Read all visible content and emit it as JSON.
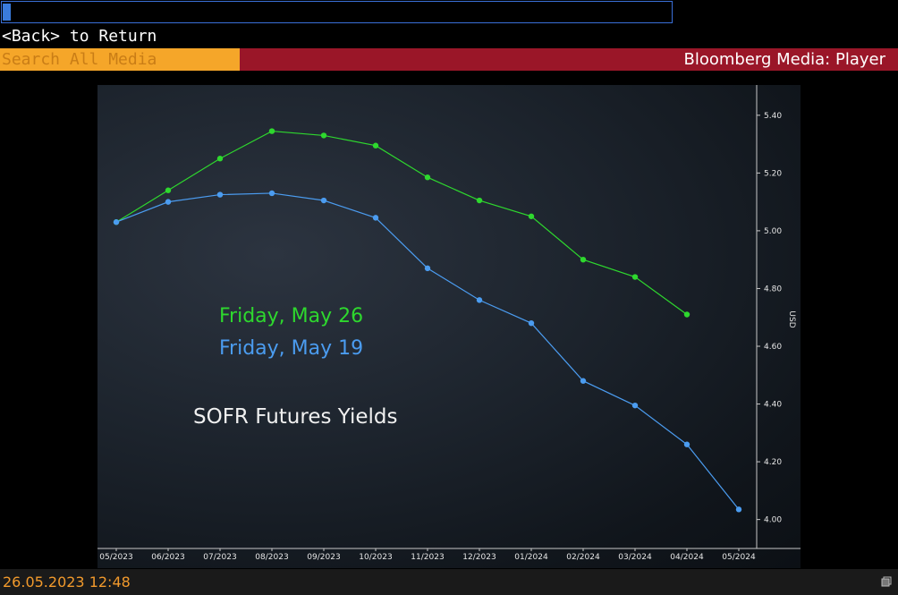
{
  "command_line": {
    "value": ""
  },
  "back_line": "<Back> to Return",
  "search": {
    "placeholder": "Search All Media"
  },
  "title_bar": {
    "label": "Bloomberg Media: Player"
  },
  "status_bar": {
    "timestamp": "26.05.2023 12:48"
  },
  "colors": {
    "search_bg": "#f5a629",
    "title_bg": "#9a1628",
    "series_may26": "#2ed82e",
    "series_may19": "#4b9cf0"
  },
  "chart_data": {
    "type": "line",
    "title": "SOFR Futures Yields",
    "ylabel": "USD",
    "xlabel": "",
    "x": [
      "05/2023",
      "06/2023",
      "07/2023",
      "08/2023",
      "09/2023",
      "10/2023",
      "11/2023",
      "12/2023",
      "01/2024",
      "02/2024",
      "03/2024",
      "04/2024",
      "05/2024"
    ],
    "yticks": [
      "4.00",
      "4.20",
      "4.40",
      "4.60",
      "4.80",
      "5.00",
      "5.20",
      "5.40"
    ],
    "ylim": [
      3.94,
      5.48
    ],
    "grid": false,
    "legend_position": "left-center",
    "series": [
      {
        "name": "Friday, May 26",
        "color": "#2ed82e",
        "values": [
          5.03,
          5.14,
          5.25,
          5.345,
          5.33,
          5.295,
          5.185,
          5.105,
          5.05,
          4.9,
          4.84,
          4.71,
          null
        ]
      },
      {
        "name": "Friday, May 19",
        "color": "#4b9cf0",
        "values": [
          5.03,
          5.1,
          5.125,
          5.13,
          5.105,
          5.045,
          4.87,
          4.76,
          4.68,
          4.48,
          4.395,
          4.26,
          4.035
        ]
      }
    ]
  }
}
